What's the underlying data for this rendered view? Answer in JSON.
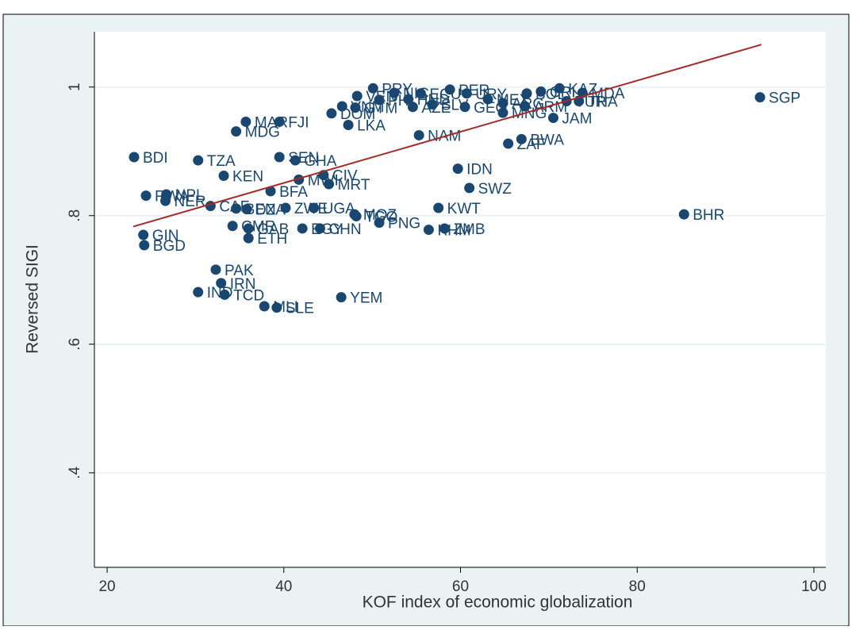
{
  "chart_data": {
    "type": "scatter",
    "x_label": "KOF index of economic globalization",
    "y_label": "Reversed SIGI",
    "xlim": [
      18.56,
      101.35
    ],
    "ylim": [
      0.253,
      1.086
    ],
    "xticks": [
      20,
      40,
      60,
      80,
      100
    ],
    "yticks": [
      {
        "value": 0.4,
        "label": ".4"
      },
      {
        "value": 0.6,
        "label": ".6"
      },
      {
        "value": 0.8,
        "label": ".8"
      },
      {
        "value": 1,
        "label": "1"
      }
    ],
    "grid": true,
    "color": "#1a476f",
    "labels": [
      "SGP",
      "BHR",
      "BDI",
      "TZA",
      "KEN",
      "GIN",
      "BGD",
      "PAK",
      "IRN",
      "IND",
      "TCD",
      "MLI",
      "SLE",
      "YEM",
      "MAR",
      "FJI",
      "MDG",
      "LKA",
      "DOM",
      "NAM",
      "IDN",
      "SWZ",
      "KWT",
      "ZAF",
      "BWA",
      "JAM",
      "MNG",
      "ARM",
      "BFA",
      "SEN",
      "GHA",
      "MWI",
      "CIV",
      "MRT",
      "RWA",
      "NPL",
      "NER",
      "CAF",
      "BEN",
      "DZA",
      "ZWE",
      "UGA",
      "MOZ",
      "TGO",
      "PNG",
      "CMR",
      "GAB",
      "ETH",
      "EGY",
      "CHN",
      "ZMB",
      "KHM",
      "VEN",
      "PRY",
      "VNM",
      "GTM",
      "PHL",
      "NIC",
      "HND",
      "ECU",
      "AZE",
      "SLV",
      "PER",
      "URY",
      "MEX",
      "ARG",
      "BOL",
      "CRI",
      "KAZ",
      "MDA",
      "TUR",
      "THA",
      "GEO"
    ],
    "x": [
      93.9,
      85.3,
      23.05,
      30.3,
      33.2,
      24.1,
      24.2,
      32.3,
      32.9,
      30.3,
      33.3,
      37.8,
      39.2,
      46.5,
      35.7,
      39.5,
      34.6,
      47.3,
      45.4,
      55.3,
      59.7,
      61.0,
      57.5,
      65.4,
      66.9,
      70.5,
      64.8,
      67.3,
      38.5,
      39.5,
      41.3,
      41.7,
      44.5,
      45.1,
      24.4,
      26.7,
      26.6,
      31.7,
      34.6,
      35.8,
      40.2,
      43.4,
      48.0,
      48.2,
      50.8,
      34.2,
      36.0,
      36.0,
      42.1,
      44.1,
      58.2,
      56.4,
      48.3,
      50.1,
      46.6,
      48.1,
      50.8,
      52.5,
      54.1,
      55.5,
      54.6,
      56.8,
      58.8,
      60.7,
      63.1,
      64.8,
      67.5,
      69.1,
      71.2,
      73.8,
      72.0,
      73.4,
      60.5
    ],
    "y": [
      0.984,
      0.802,
      0.891,
      0.886,
      0.862,
      0.77,
      0.754,
      0.716,
      0.695,
      0.681,
      0.677,
      0.659,
      0.657,
      0.673,
      0.946,
      0.946,
      0.931,
      0.941,
      0.959,
      0.925,
      0.873,
      0.843,
      0.812,
      0.912,
      0.919,
      0.952,
      0.96,
      0.97,
      0.838,
      0.891,
      0.886,
      0.856,
      0.863,
      0.849,
      0.831,
      0.833,
      0.823,
      0.815,
      0.811,
      0.81,
      0.812,
      0.812,
      0.802,
      0.799,
      0.789,
      0.784,
      0.78,
      0.765,
      0.78,
      0.78,
      0.78,
      0.778,
      0.986,
      0.998,
      0.97,
      0.968,
      0.98,
      0.991,
      0.981,
      0.99,
      0.969,
      0.973,
      0.996,
      0.99,
      0.981,
      0.975,
      0.99,
      0.993,
      0.998,
      0.991,
      0.978,
      0.978,
      0.969
    ],
    "fit": {
      "color": "#a52a2a",
      "x": [
        22.96,
        94.06
      ],
      "y": [
        0.783,
        1.066
      ]
    }
  }
}
